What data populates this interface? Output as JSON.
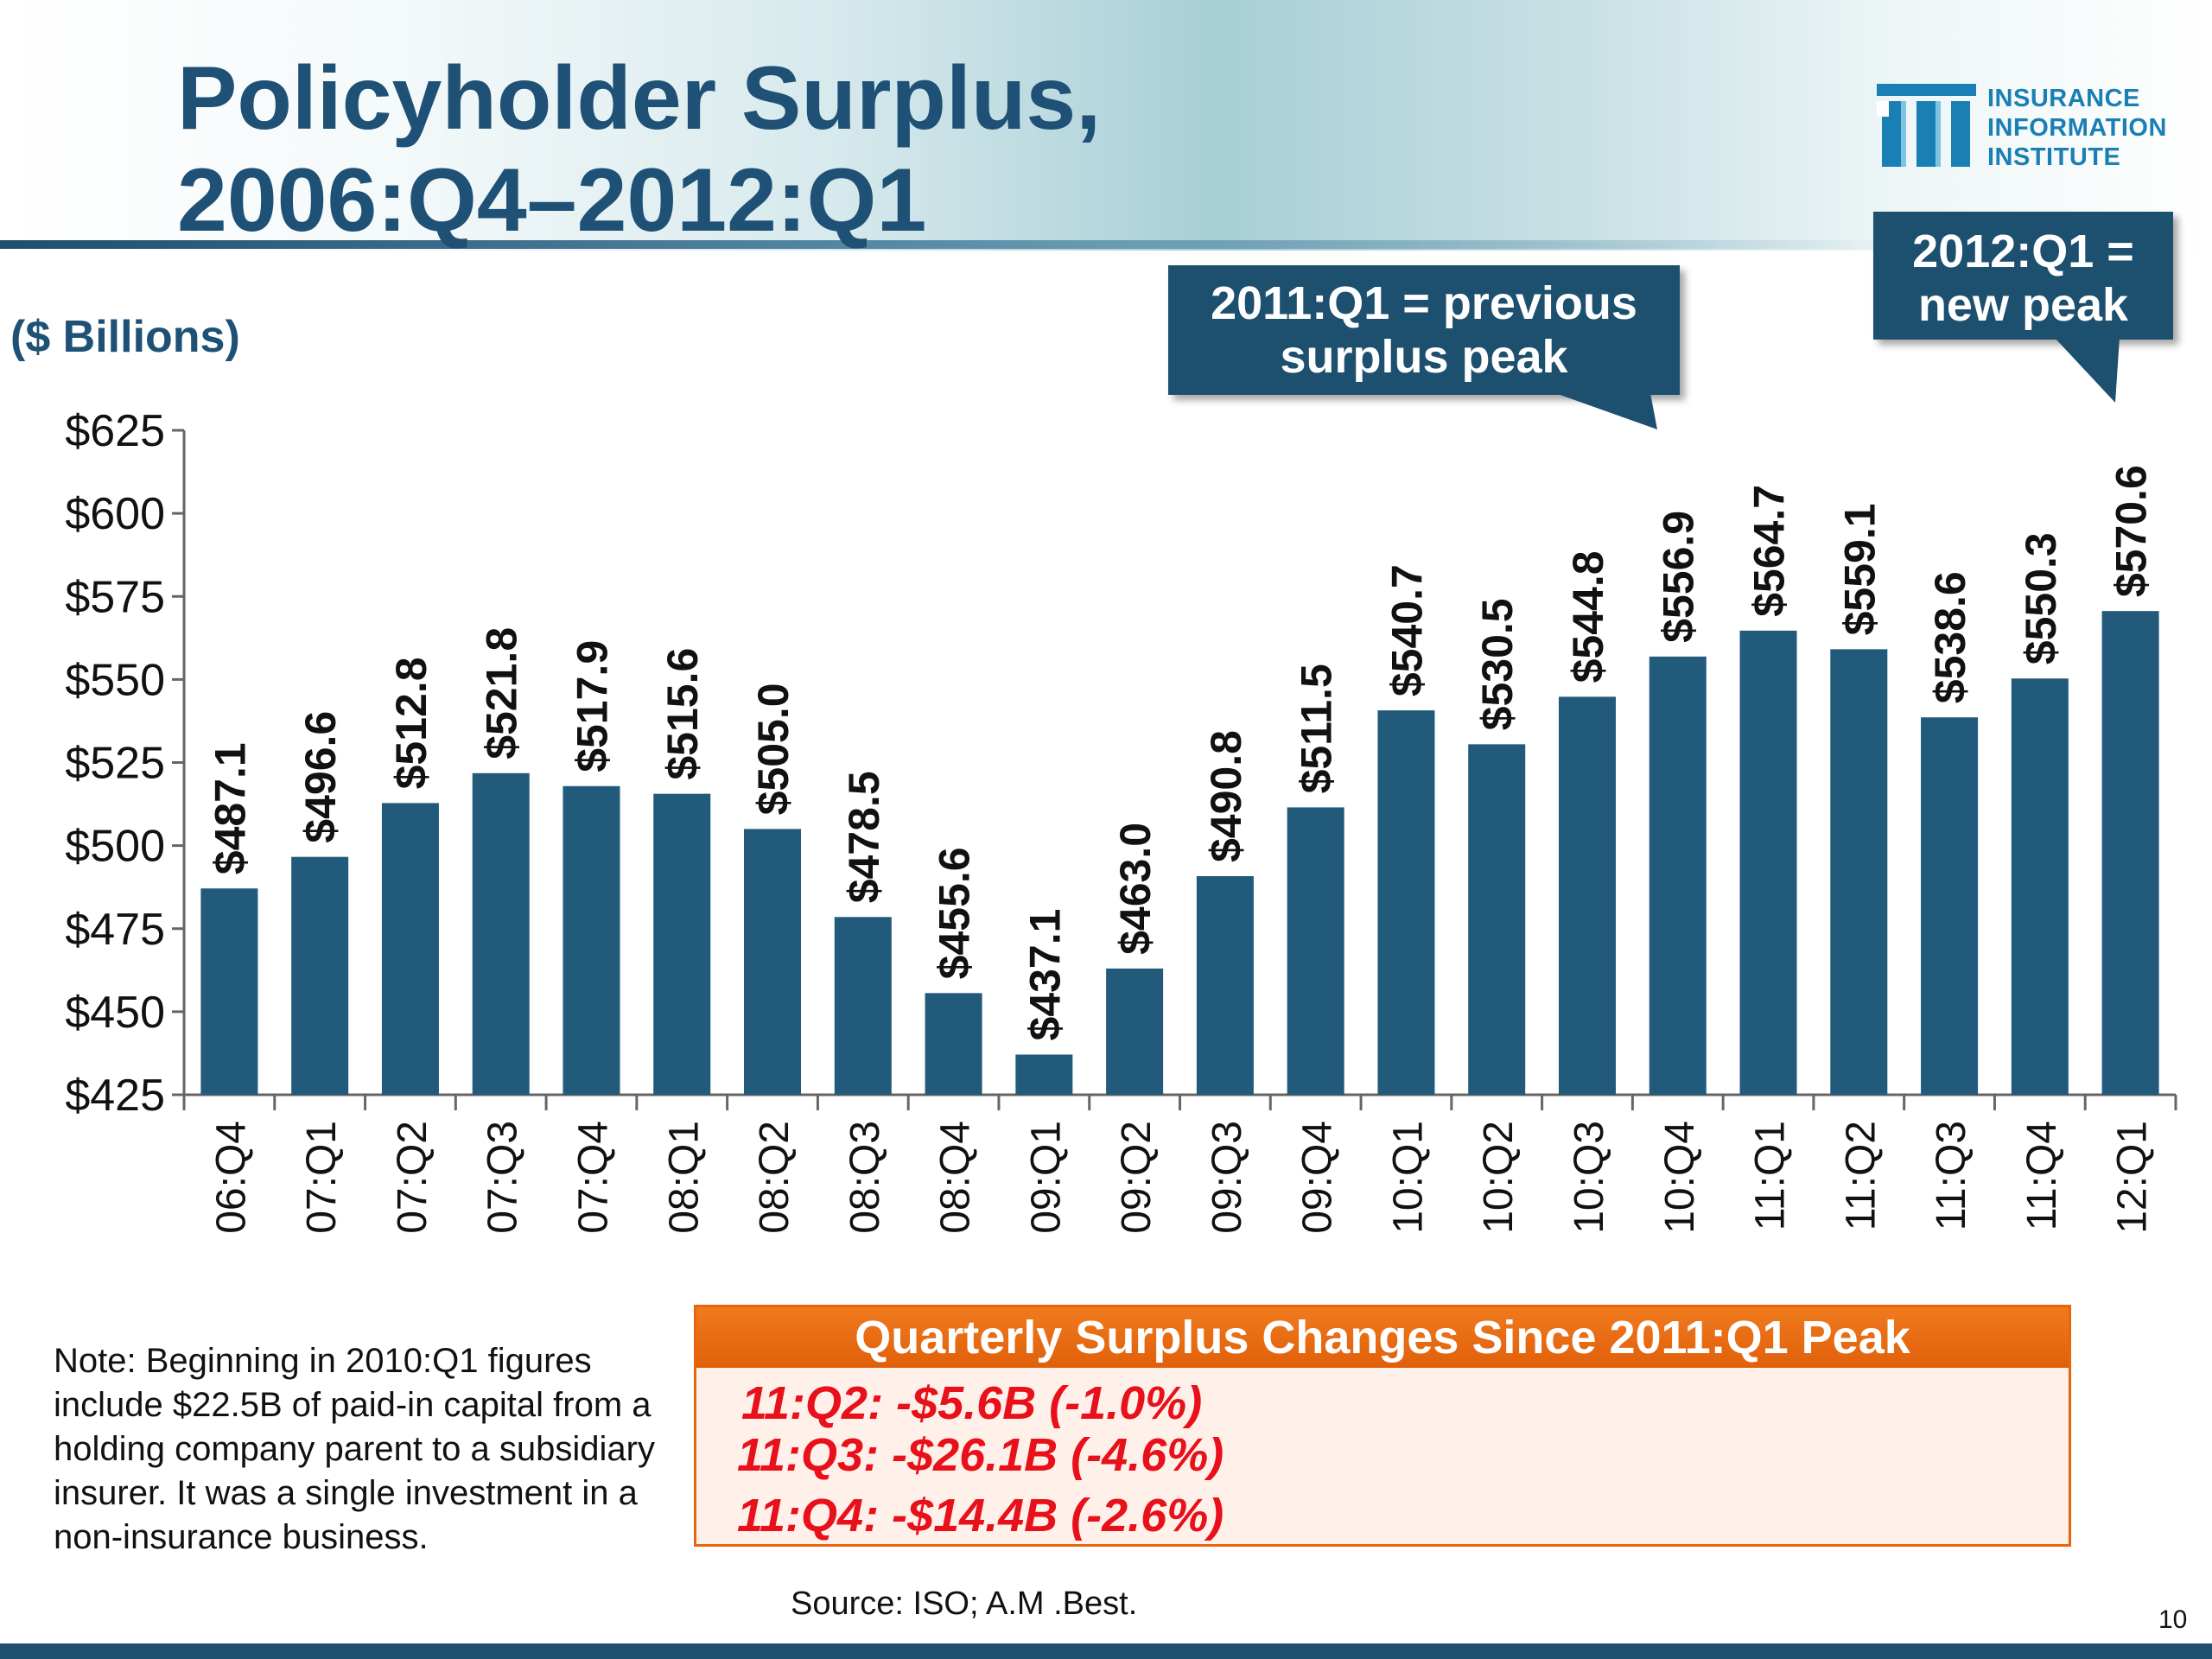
{
  "title_line1": "Policyholder Surplus,",
  "title_line2": "2006:Q4–2012:Q1",
  "logo": {
    "line1": "INSURANCE",
    "line2": "INFORMATION",
    "line3": "INSTITUTE"
  },
  "units_label": "($ Billions)",
  "callouts": {
    "previous_peak_line1": "2011:Q1 = previous",
    "previous_peak_line2": "surplus peak",
    "new_peak_line1": "2012:Q1 =",
    "new_peak_line2": "new peak"
  },
  "note": "Note: Beginning in 2010:Q1 figures include $22.5B of paid-in capital from a holding company parent to a subsidiary insurer. It was a single investment in a non-insurance business.",
  "changes": {
    "header": "Quarterly Surplus Changes Since 2011:Q1 Peak",
    "lines": [
      "11:Q2: -$5.6B (-1.0%)",
      "11:Q3: -$26.1B (-4.6%)",
      "11:Q4: -$14.4B (-2.6%)"
    ]
  },
  "source": "Source: ISO; A.M .Best.",
  "page_number": "10",
  "colors": {
    "bar": "#225a7c",
    "title": "#1f5176",
    "callout_bg": "#1d4f6f",
    "box_accent": "#e8650c",
    "change_text": "#e8101a"
  },
  "chart_data": {
    "type": "bar",
    "title": "Policyholder Surplus, 2006:Q4–2012:Q1",
    "ylabel": "($ Billions)",
    "ylim": [
      425,
      625
    ],
    "yticks": [
      625,
      600,
      575,
      550,
      525,
      500,
      475,
      450,
      425
    ],
    "ytick_labels": [
      "$625",
      "$600",
      "$575",
      "$550",
      "$525",
      "$500",
      "$475",
      "$450",
      "$425"
    ],
    "categories": [
      "06:Q4",
      "07:Q1",
      "07:Q2",
      "07:Q3",
      "07:Q4",
      "08:Q1",
      "08:Q2",
      "08:Q3",
      "08:Q4",
      "09:Q1",
      "09:Q2",
      "09:Q3",
      "09:Q4",
      "10:Q1",
      "10:Q2",
      "10:Q3",
      "10:Q4",
      "11:Q1",
      "11:Q2",
      "11:Q3",
      "11:Q4",
      "12:Q1"
    ],
    "values": [
      487.1,
      496.6,
      512.8,
      521.8,
      517.9,
      515.6,
      505.0,
      478.5,
      455.6,
      437.1,
      463.0,
      490.8,
      511.5,
      540.7,
      530.5,
      544.8,
      556.9,
      564.7,
      559.1,
      538.6,
      550.3,
      570.6
    ],
    "value_labels": [
      "$487.1",
      "$496.6",
      "$512.8",
      "$521.8",
      "$517.9",
      "$515.6",
      "$505.0",
      "$478.5",
      "$455.6",
      "$437.1",
      "$463.0",
      "$490.8",
      "$511.5",
      "$540.7",
      "$530.5",
      "$544.8",
      "$556.9",
      "$564.7",
      "$559.1",
      "$538.6",
      "$550.3",
      "$570.6"
    ],
    "grid": false,
    "legend": "none"
  }
}
